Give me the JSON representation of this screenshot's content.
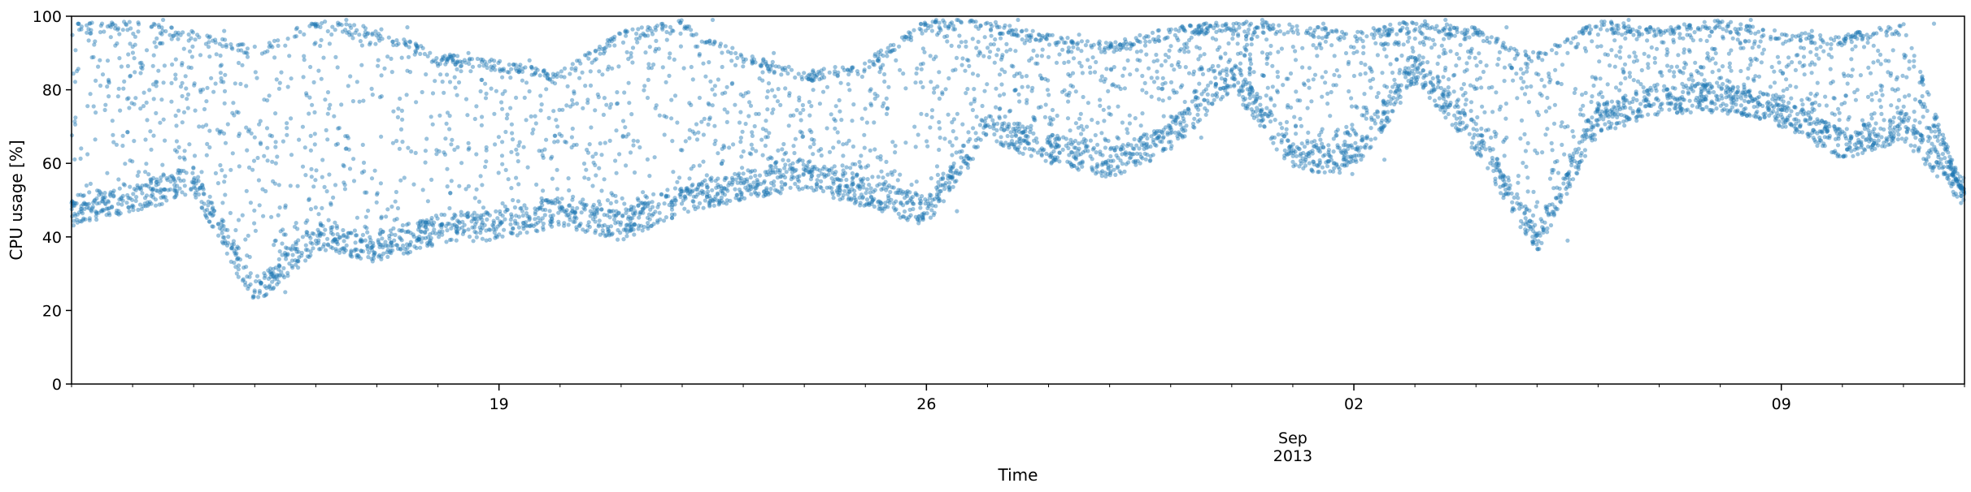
{
  "chart_data": {
    "type": "scatter",
    "title": "",
    "xlabel": "Time",
    "ylabel": "CPU usage [%]",
    "xlim": [
      "2013-08-12",
      "2013-09-12"
    ],
    "ylim": [
      0,
      100
    ],
    "yticks": [
      0,
      20,
      40,
      60,
      80,
      100
    ],
    "x_major_ticks": [
      {
        "date": "2013-08-19",
        "label": "19"
      },
      {
        "date": "2013-08-26",
        "label": "26"
      },
      {
        "date": "2013-09-02",
        "label": "02"
      },
      {
        "date": "2013-09-09",
        "label": "09"
      }
    ],
    "x_secondary_label": {
      "date": "2013-09-01",
      "lines": [
        "Sep",
        "2013"
      ]
    },
    "grid": false,
    "marker_color": "#1f77b4",
    "marker_alpha": 0.45,
    "series": [
      {
        "points": [
          [
            "2013-08-12",
            47
          ],
          [
            "2013-08-12",
            98
          ],
          [
            "2013-08-13",
            51
          ],
          [
            "2013-08-13",
            99
          ],
          [
            "2013-08-14",
            55
          ],
          [
            "2013-08-14",
            96
          ],
          [
            "2013-08-15",
            48
          ],
          [
            "2013-08-15",
            25
          ],
          [
            "2013-08-15",
            92
          ],
          [
            "2013-08-16",
            40
          ],
          [
            "2013-08-16",
            99
          ],
          [
            "2013-08-17",
            37
          ],
          [
            "2013-08-17",
            97
          ],
          [
            "2013-08-18",
            42
          ],
          [
            "2013-08-18",
            90
          ],
          [
            "2013-08-19",
            43
          ],
          [
            "2013-08-19",
            88
          ],
          [
            "2013-08-20",
            47
          ],
          [
            "2013-08-20",
            85
          ],
          [
            "2013-08-21",
            43
          ],
          [
            "2013-08-21",
            96
          ],
          [
            "2013-08-22",
            50
          ],
          [
            "2013-08-22",
            99
          ],
          [
            "2013-08-23",
            54
          ],
          [
            "2013-08-23",
            90
          ],
          [
            "2013-08-24",
            57
          ],
          [
            "2013-08-24",
            85
          ],
          [
            "2013-08-25",
            52
          ],
          [
            "2013-08-25",
            88
          ],
          [
            "2013-08-26",
            47
          ],
          [
            "2013-08-26",
            99
          ],
          [
            "2013-08-27",
            70
          ],
          [
            "2013-08-27",
            99
          ],
          [
            "2013-08-28",
            64
          ],
          [
            "2013-08-28",
            95
          ],
          [
            "2013-08-29",
            60
          ],
          [
            "2013-08-29",
            93
          ],
          [
            "2013-08-30",
            67
          ],
          [
            "2013-08-30",
            97
          ],
          [
            "2013-08-31",
            84
          ],
          [
            "2013-08-31",
            99
          ],
          [
            "2013-09-01",
            62
          ],
          [
            "2013-09-01",
            98
          ],
          [
            "2013-09-02",
            61
          ],
          [
            "2013-09-02",
            96
          ],
          [
            "2013-09-03",
            86
          ],
          [
            "2013-09-03",
            99
          ],
          [
            "2013-09-04",
            67
          ],
          [
            "2013-09-04",
            97
          ],
          [
            "2013-09-05",
            39
          ],
          [
            "2013-09-05",
            90
          ],
          [
            "2013-09-06",
            72
          ],
          [
            "2013-09-06",
            99
          ],
          [
            "2013-09-07",
            77
          ],
          [
            "2013-09-07",
            97
          ],
          [
            "2013-09-08",
            78
          ],
          [
            "2013-09-08",
            99
          ],
          [
            "2013-09-09",
            74
          ],
          [
            "2013-09-09",
            96
          ],
          [
            "2013-09-10",
            65
          ],
          [
            "2013-09-10",
            95
          ],
          [
            "2013-09-11",
            70
          ],
          [
            "2013-09-11",
            98
          ],
          [
            "2013-09-12",
            52
          ]
        ]
      }
    ]
  }
}
